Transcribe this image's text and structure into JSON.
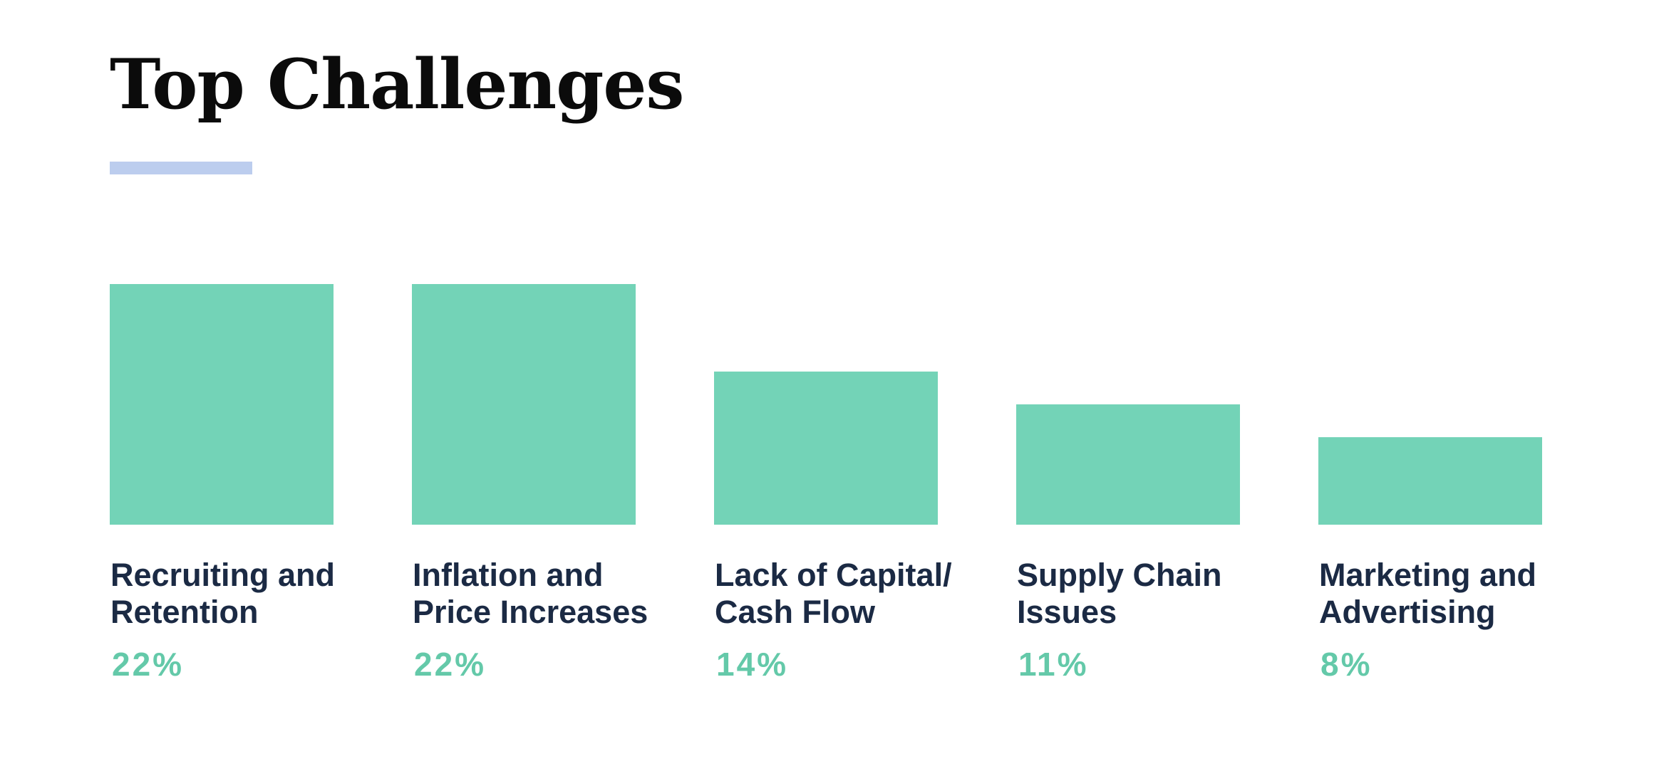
{
  "title": "Top Challenges",
  "colors": {
    "accent_rule": "#bccdee",
    "bar": "#73d3b7",
    "value_text": "#64c9a9",
    "category_text": "#1b2a44",
    "title_text": "#0b0b0b"
  },
  "chart_data": {
    "type": "bar",
    "title": "Top Challenges",
    "categories": [
      [
        "Recruiting and",
        "Retention"
      ],
      [
        "Inflation and",
        "Price Increases"
      ],
      [
        "Lack of Capital/",
        "Cash Flow"
      ],
      [
        "Supply Chain",
        "Issues"
      ],
      [
        "Marketing and",
        "Advertising"
      ]
    ],
    "values": [
      22,
      22,
      14,
      11,
      8
    ],
    "value_labels": [
      "22%",
      "22%",
      "14%",
      "11%",
      "8%"
    ],
    "unit": "%",
    "ylim": [
      0,
      22
    ],
    "grid": false,
    "legend": "none"
  }
}
